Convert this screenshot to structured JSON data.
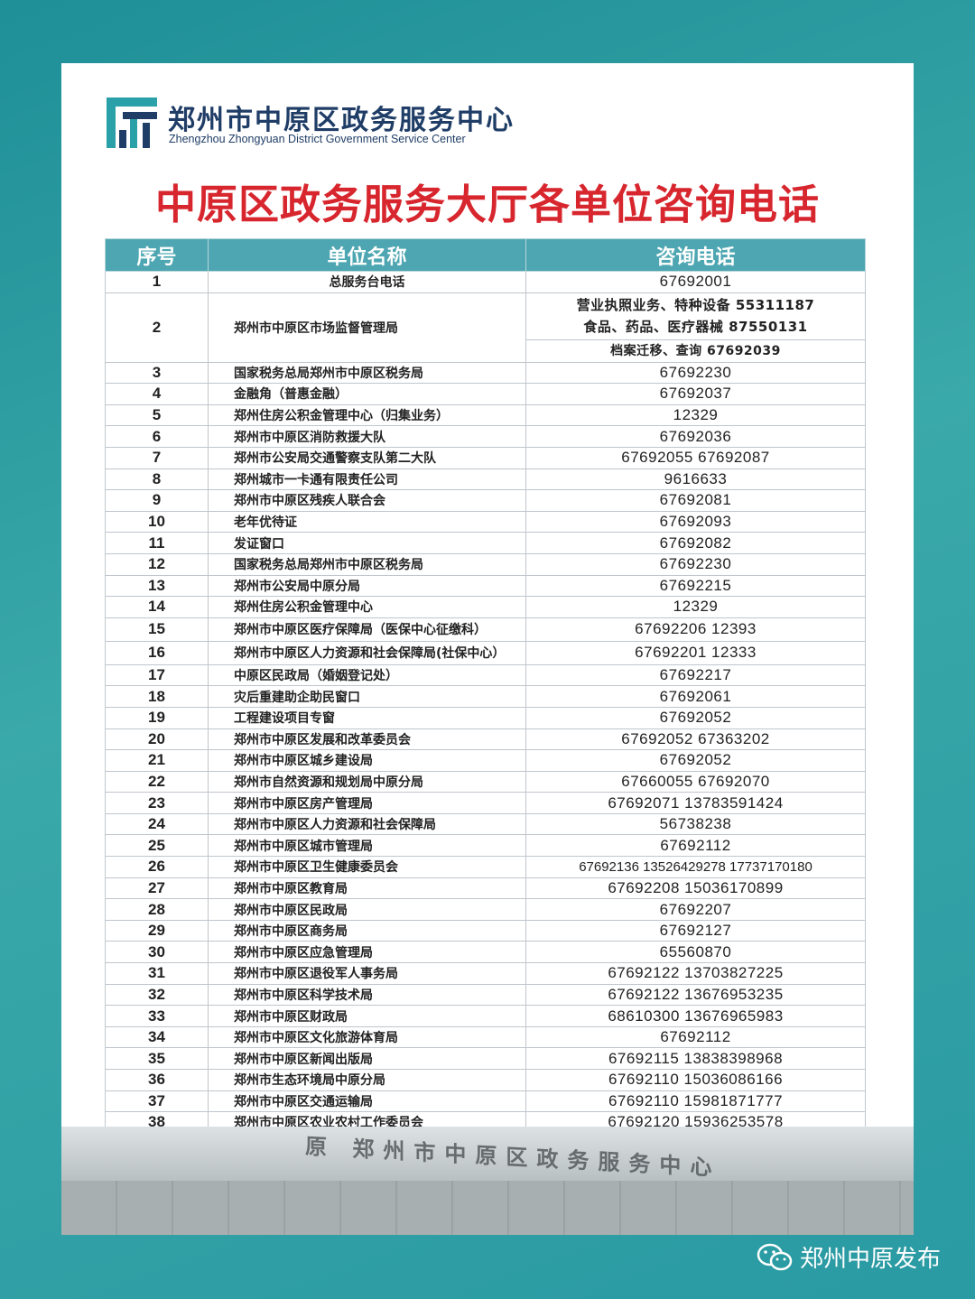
{
  "header": {
    "org_cn": "郑州市中原区政务服务中心",
    "org_en": "Zhengzhou Zhongyuan District Government Service Center",
    "logo_icon": "zhongyuan-logo",
    "title": "中原区政务服务大厅各单位咨询电话"
  },
  "colors": {
    "accent": "#4da6b1",
    "title": "#d7262e",
    "background": "#2a9aa3"
  },
  "table": {
    "columns": [
      "序号",
      "单位名称",
      "咨询电话"
    ],
    "row2": {
      "index": "2",
      "name": "郑州市中原区市场监督管理局",
      "phones": [
        "营业执照业务、特种设备 55311187",
        "食品、药品、医疗器械 87550131",
        "档案迁移、查询  67692039"
      ]
    },
    "rows": [
      {
        "index": "1",
        "name": "总服务台电话",
        "phone": "67692001"
      },
      {
        "index": "3",
        "name": "国家税务总局郑州市中原区税务局",
        "phone": "67692230"
      },
      {
        "index": "4",
        "name": "金融角（普惠金融）",
        "phone": "67692037"
      },
      {
        "index": "5",
        "name": "郑州住房公积金管理中心（归集业务）",
        "phone": "12329"
      },
      {
        "index": "6",
        "name": "郑州市中原区消防救援大队",
        "phone": "67692036"
      },
      {
        "index": "7",
        "name": "郑州市公安局交通警察支队第二大队",
        "phone": "67692055 67692087"
      },
      {
        "index": "8",
        "name": "郑州城市一卡通有限责任公司",
        "phone": "9616633"
      },
      {
        "index": "9",
        "name": "郑州市中原区残疾人联合会",
        "phone": "67692081"
      },
      {
        "index": "10",
        "name": "老年优待证",
        "phone": "67692093"
      },
      {
        "index": "11",
        "name": "发证窗口",
        "phone": "67692082"
      },
      {
        "index": "12",
        "name": "国家税务总局郑州市中原区税务局",
        "phone": "67692230"
      },
      {
        "index": "13",
        "name": "郑州市公安局中原分局",
        "phone": "67692215"
      },
      {
        "index": "14",
        "name": "郑州住房公积金管理中心",
        "phone": "12329"
      },
      {
        "index": "15",
        "name": "郑州市中原区医疗保障局（医保中心征缴科）",
        "phone": "67692206  12393"
      },
      {
        "index": "16",
        "name": "郑州市中原区人力资源和社会保障局(社保中心）",
        "phone": "67692201  12333"
      },
      {
        "index": "17",
        "name": "中原区民政局（婚姻登记处）",
        "phone": "67692217"
      },
      {
        "index": "18",
        "name": "灾后重建助企助民窗口",
        "phone": "67692061"
      },
      {
        "index": "19",
        "name": "工程建设项目专窗",
        "phone": "67692052"
      },
      {
        "index": "20",
        "name": "郑州市中原区发展和改革委员会",
        "phone": "67692052 67363202"
      },
      {
        "index": "21",
        "name": "郑州市中原区城乡建设局",
        "phone": "67692052"
      },
      {
        "index": "22",
        "name": "郑州市自然资源和规划局中原分局",
        "phone": "67660055  67692070"
      },
      {
        "index": "23",
        "name": "郑州市中原区房产管理局",
        "phone": "67692071 13783591424"
      },
      {
        "index": "24",
        "name": "郑州市中原区人力资源和社会保障局",
        "phone": "56738238"
      },
      {
        "index": "25",
        "name": "郑州市中原区城市管理局",
        "phone": "67692112"
      },
      {
        "index": "26",
        "name": "郑州市中原区卫生健康委员会",
        "phone": "67692136 13526429278 17737170180"
      },
      {
        "index": "27",
        "name": "郑州市中原区教育局",
        "phone": "67692208 15036170899"
      },
      {
        "index": "28",
        "name": "郑州市中原区民政局",
        "phone": "67692207"
      },
      {
        "index": "29",
        "name": "郑州市中原区商务局",
        "phone": "67692127"
      },
      {
        "index": "30",
        "name": "郑州市中原区应急管理局",
        "phone": "65560870"
      },
      {
        "index": "31",
        "name": "郑州市中原区退役军人事务局",
        "phone": "67692122  13703827225"
      },
      {
        "index": "32",
        "name": "郑州市中原区科学技术局",
        "phone": "67692122  13676953235"
      },
      {
        "index": "33",
        "name": "郑州市中原区财政局",
        "phone": "68610300  13676965983"
      },
      {
        "index": "34",
        "name": "郑州市中原区文化旅游体育局",
        "phone": "67692112"
      },
      {
        "index": "35",
        "name": "郑州市中原区新闻出版局",
        "phone": "67692115 13838398968"
      },
      {
        "index": "36",
        "name": "郑州市生态环境局中原分局",
        "phone": "67692110 15036086166"
      },
      {
        "index": "37",
        "name": "郑州市中原区交通运输局",
        "phone": "67692110  15981871777"
      },
      {
        "index": "38",
        "name": "郑州市中原区农业农村工作委员会",
        "phone": "67692120  15936253578"
      }
    ]
  },
  "photo": {
    "sign_text": "原 郑州市中原区政务服务中心"
  },
  "footer": {
    "icon": "wechat-icon",
    "account": "郑州中原发布"
  }
}
